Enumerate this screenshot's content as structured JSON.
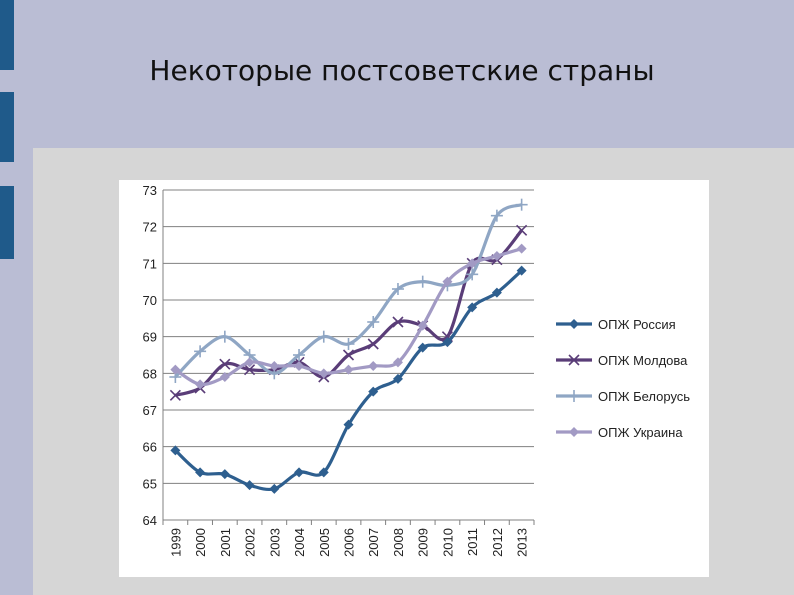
{
  "slide": {
    "title": "Некоторые постсоветские страны"
  },
  "colors": {
    "background": "#babdd4",
    "accent_bar": "#1f5a8a",
    "panel": "#d6d6d6",
    "chart_bg": "#ffffff"
  },
  "chart_data": {
    "type": "line",
    "title": "",
    "xlabel": "",
    "ylabel": "",
    "x": [
      "1999",
      "2000",
      "2001",
      "2002",
      "2003",
      "2004",
      "2005",
      "2006",
      "2007",
      "2008",
      "2009",
      "2010",
      "2011",
      "2012",
      "2013"
    ],
    "ylim": [
      64,
      73
    ],
    "yticks": [
      "64",
      "65",
      "66",
      "67",
      "68",
      "69",
      "70",
      "71",
      "72",
      "73"
    ],
    "grid": "horizontal",
    "legend_position": "right",
    "smooth": true,
    "series": [
      {
        "name": "ОПЖ Россия",
        "color": "#2e5f8f",
        "marker": "diamond",
        "values": [
          65.9,
          65.3,
          65.25,
          64.95,
          64.85,
          65.3,
          65.3,
          66.6,
          67.5,
          67.85,
          68.7,
          68.85,
          69.8,
          70.2,
          70.8
        ]
      },
      {
        "name": "ОПЖ Молдова",
        "color": "#5a3d78",
        "marker": "x",
        "values": [
          67.4,
          67.6,
          68.25,
          68.1,
          68.1,
          68.3,
          67.9,
          68.5,
          68.8,
          69.4,
          69.3,
          69.0,
          71.0,
          71.1,
          71.9
        ]
      },
      {
        "name": "ОПЖ Белорусь",
        "color": "#8fa6c4",
        "marker": "plus",
        "values": [
          67.9,
          68.6,
          69.0,
          68.5,
          68.0,
          68.5,
          69.0,
          68.8,
          69.4,
          70.3,
          70.5,
          70.4,
          70.7,
          72.3,
          72.6
        ]
      },
      {
        "name": "ОПЖ  Украина",
        "color": "#a29ac4",
        "marker": "diamond",
        "values": [
          68.1,
          67.7,
          67.9,
          68.3,
          68.2,
          68.2,
          68.0,
          68.1,
          68.2,
          68.3,
          69.3,
          70.5,
          71.0,
          71.2,
          71.4
        ]
      }
    ]
  }
}
